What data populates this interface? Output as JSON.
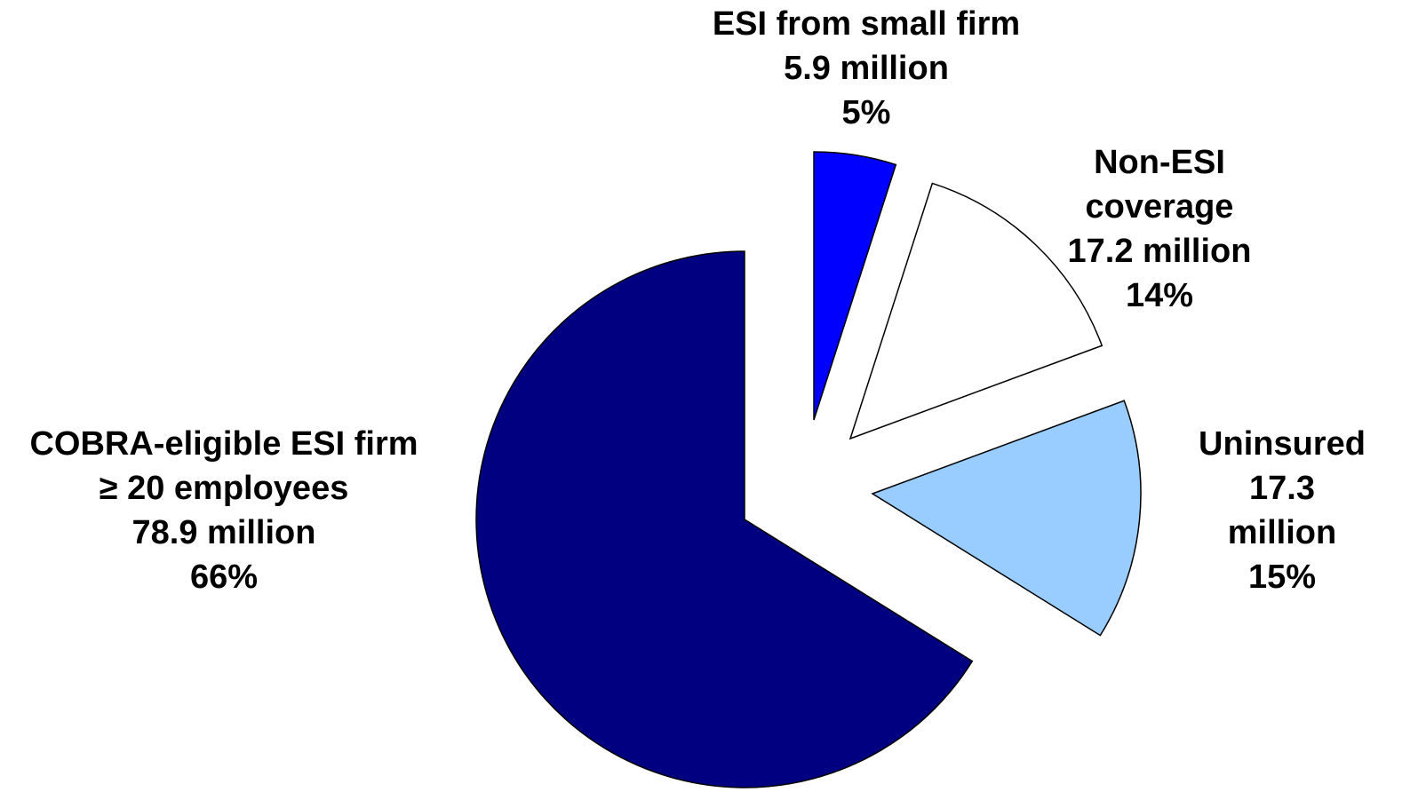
{
  "chart_data": {
    "type": "pie",
    "categories": [
      "ESI from small firm",
      "Non-ESI coverage",
      "Uninsured",
      "COBRA-eligible ESI firm\n≥ 20 employees"
    ],
    "values": [
      5.9,
      17.2,
      17.3,
      78.9
    ],
    "value_labels": [
      "5.9 million",
      "17.2 million",
      "17.3 million",
      "78.9 million"
    ],
    "percents": [
      5,
      14,
      15,
      66
    ],
    "percent_labels": [
      "5%",
      "14%",
      "15%",
      "66%"
    ],
    "colors": [
      "#0000ff",
      "#ffffff",
      "#99ccff",
      "#000080"
    ]
  }
}
